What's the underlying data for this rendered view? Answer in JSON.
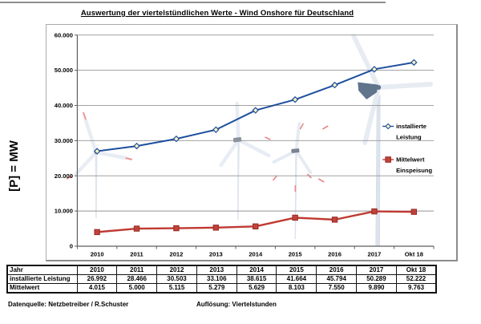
{
  "page": {
    "title": "Auswertung der viertelstündlichen Werte - Wind Onshore für Deutschland",
    "y_axis_unit_label": "[P] = MW",
    "footer": {
      "source_label": "Datenquelle: Netzbetreiber / R.Schuster",
      "resolution_label": "Auflösung: Viertelstunden"
    }
  },
  "chart_data": {
    "type": "line",
    "title": "Auswertung der viertelstündlichen Werte - Wind Onshore für Deutschland",
    "xlabel": "",
    "ylabel": "[P] = MW",
    "ylim": [
      0,
      60000
    ],
    "y_tick_interval": 10000,
    "y_tick_labels": [
      "0",
      "10.000",
      "20.000",
      "30.000",
      "40.000",
      "50.000",
      "60.000"
    ],
    "grid": true,
    "legend_position": "inside-right",
    "categories": [
      "2010",
      "2011",
      "2012",
      "2013",
      "2014",
      "2015",
      "2016",
      "2017",
      "Okt 18"
    ],
    "series": [
      {
        "name": "installierte Leistung",
        "color": "#1d4f9c",
        "marker": "diamond",
        "marker_fill": "#fdf4bf",
        "values": [
          26992,
          28466,
          30503,
          33106,
          38615,
          41664,
          45794,
          50289,
          52222
        ]
      },
      {
        "name": "Mittelwert Einspeisung",
        "color": "#bf3a32",
        "marker": "square",
        "marker_fill": "#c2423a",
        "values": [
          4015,
          5000,
          5115,
          5279,
          5629,
          8103,
          7550,
          9890,
          9763
        ]
      }
    ],
    "legend": [
      {
        "line1": "installierte",
        "line2": "Leistung"
      },
      {
        "line1": "Mittelwert",
        "line2": "Einspeisung"
      }
    ]
  },
  "table": {
    "rows": [
      {
        "header": "Jahr",
        "cells": [
          "2010",
          "2011",
          "2012",
          "2013",
          "2014",
          "2015",
          "2016",
          "2017",
          "Okt 18"
        ]
      },
      {
        "header": "installierte Leistung",
        "cells": [
          "26.992",
          "28.466",
          "30.503",
          "33.106",
          "38.615",
          "41.664",
          "45.794",
          "50.289",
          "52.222"
        ]
      },
      {
        "header": "Mittelwert",
        "cells": [
          "4.015",
          "5.000",
          "5.115",
          "5.279",
          "5.629",
          "8.103",
          "7.550",
          "9.890",
          "9.763"
        ]
      }
    ]
  }
}
